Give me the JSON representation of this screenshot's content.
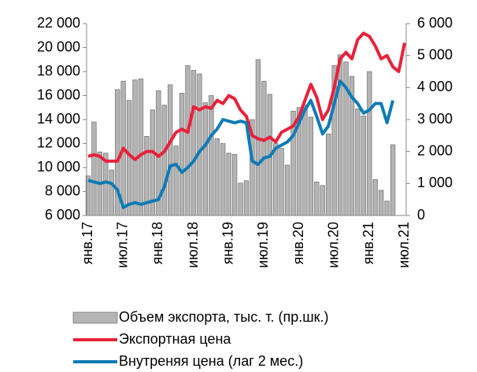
{
  "chart_data": {
    "type": "bar_line",
    "categories": [
      "янв.17",
      null,
      null,
      null,
      null,
      null,
      "июл.17",
      null,
      null,
      null,
      null,
      null,
      "янв.18",
      null,
      null,
      null,
      null,
      null,
      "июл.18",
      null,
      null,
      null,
      null,
      null,
      "янв.19",
      null,
      null,
      null,
      null,
      null,
      "июл.19",
      null,
      null,
      null,
      null,
      null,
      "янв.20",
      null,
      null,
      null,
      null,
      null,
      "июл.20",
      null,
      null,
      null,
      null,
      null,
      "янв.21",
      null,
      null,
      null,
      null,
      null,
      "июл.21"
    ],
    "series": [
      {
        "name": "Объем экспорта, тыс. т. (пр.шк.)",
        "type": "bar",
        "color": "#b4b4b4",
        "axis": "y",
        "values": [
          9300,
          13800,
          11300,
          11200,
          9800,
          16500,
          17200,
          15600,
          17300,
          17400,
          12600,
          14800,
          16400,
          15200,
          16900,
          11800,
          16200,
          18500,
          18100,
          17800,
          15400,
          16000,
          12400,
          12000,
          11200,
          11100,
          8700,
          8900,
          14000,
          19000,
          17200,
          16100,
          12000,
          11600,
          10200,
          14700,
          15000,
          15200,
          14200,
          8800,
          8500,
          12800,
          18500,
          19400,
          18800,
          17600,
          14900,
          14300,
          18000,
          9000,
          8100,
          7200,
          11900,
          null,
          null
        ]
      },
      {
        "name": "Экспортная цена",
        "type": "line",
        "color": "#e8213a",
        "axis": "y2",
        "values": [
          1850,
          1900,
          1850,
          1700,
          1700,
          1700,
          2100,
          1900,
          1750,
          1900,
          2000,
          2000,
          1850,
          2000,
          2300,
          2600,
          2700,
          2600,
          3400,
          3300,
          3400,
          3350,
          3600,
          3500,
          3750,
          3650,
          3300,
          3100,
          2500,
          2400,
          2350,
          2450,
          2300,
          2600,
          2700,
          2800,
          3100,
          3600,
          4100,
          3700,
          3000,
          3300,
          4000,
          4900,
          5100,
          4900,
          5500,
          5700,
          5600,
          5300,
          4900,
          5000,
          4650,
          4500,
          5400
        ]
      },
      {
        "name": "Внутреняя цена (лаг 2 мес.)",
        "type": "line",
        "color": "#0e7bb5",
        "axis": "y2",
        "values": [
          1100,
          1050,
          1000,
          1050,
          1000,
          800,
          250,
          350,
          400,
          350,
          400,
          450,
          500,
          900,
          1550,
          1600,
          1350,
          1500,
          1700,
          2000,
          2200,
          2500,
          2700,
          3000,
          2950,
          2900,
          2950,
          2900,
          1700,
          1600,
          1800,
          1850,
          2100,
          2200,
          2300,
          2500,
          2900,
          3300,
          3600,
          3100,
          2550,
          2800,
          3500,
          4200,
          4000,
          3700,
          3500,
          3200,
          3300,
          3500,
          3500,
          2900,
          3600,
          null,
          null
        ]
      }
    ],
    "ylim": [
      6000,
      22000
    ],
    "yticks": [
      {
        "value": 6000,
        "label": "6 000"
      },
      {
        "value": 8000,
        "label": "8 000"
      },
      {
        "value": 10000,
        "label": "10 000"
      },
      {
        "value": 12000,
        "label": "12 000"
      },
      {
        "value": 14000,
        "label": "14 000"
      },
      {
        "value": 16000,
        "label": "16 000"
      },
      {
        "value": 18000,
        "label": "18 000"
      },
      {
        "value": 20000,
        "label": "20 000"
      },
      {
        "value": 22000,
        "label": "22 000"
      }
    ],
    "y2lim": [
      0,
      6000
    ],
    "y2ticks": [
      0,
      {
        "value": 1000,
        "label": "1 000"
      },
      {
        "value": 2000,
        "label": "2 000"
      },
      {
        "value": 3000,
        "label": "3 000"
      },
      {
        "value": 4000,
        "label": "4 000"
      },
      {
        "value": 5000,
        "label": "5 000"
      },
      {
        "value": 6000,
        "label": "6 000"
      }
    ]
  }
}
